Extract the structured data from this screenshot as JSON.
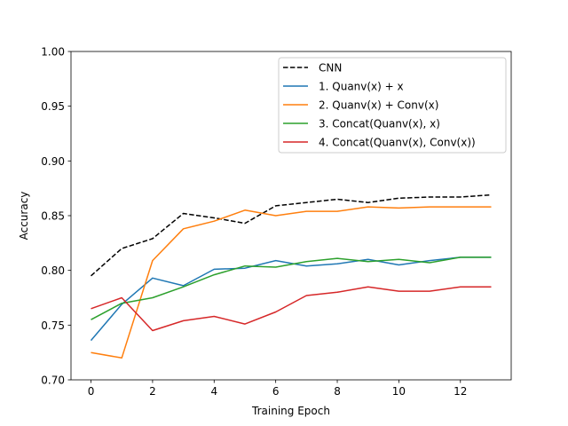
{
  "chart_data": {
    "type": "line",
    "title": "",
    "xlabel": "Training Epoch",
    "ylabel": "Accuracy",
    "xlim": [
      -0.65,
      13.65
    ],
    "ylim": [
      0.7,
      1.0
    ],
    "xticks": [
      0,
      2,
      4,
      6,
      8,
      10,
      12
    ],
    "yticks": [
      0.7,
      0.75,
      0.8,
      0.85,
      0.9,
      0.95,
      1.0
    ],
    "xtick_labels": [
      "0",
      "2",
      "4",
      "6",
      "8",
      "10",
      "12"
    ],
    "ytick_labels": [
      "0.70",
      "0.75",
      "0.80",
      "0.85",
      "0.90",
      "0.95",
      "1.00"
    ],
    "grid": false,
    "legend_position": "top-right",
    "x": [
      0,
      1,
      2,
      3,
      4,
      5,
      6,
      7,
      8,
      9,
      10,
      11,
      12,
      13
    ],
    "series": [
      {
        "name": "CNN",
        "color": "#000000",
        "dashed": true,
        "values": [
          0.795,
          0.82,
          0.829,
          0.852,
          0.848,
          0.843,
          0.859,
          0.862,
          0.865,
          0.862,
          0.866,
          0.867,
          0.867,
          0.869
        ]
      },
      {
        "name": "1. Quanv(x) + x",
        "color": "#1f77b4",
        "dashed": false,
        "values": [
          0.736,
          0.769,
          0.793,
          0.786,
          0.801,
          0.802,
          0.809,
          0.804,
          0.806,
          0.81,
          0.805,
          0.809,
          0.812,
          0.812
        ]
      },
      {
        "name": "2. Quanv(x) + Conv(x)",
        "color": "#ff7f0e",
        "dashed": false,
        "values": [
          0.725,
          0.72,
          0.809,
          0.838,
          0.845,
          0.855,
          0.85,
          0.854,
          0.854,
          0.858,
          0.857,
          0.858,
          0.858,
          0.858
        ]
      },
      {
        "name": "3. Concat(Quanv(x), x)",
        "color": "#2ca02c",
        "dashed": false,
        "values": [
          0.755,
          0.77,
          0.775,
          0.785,
          0.796,
          0.804,
          0.803,
          0.808,
          0.811,
          0.808,
          0.81,
          0.807,
          0.812,
          0.812
        ]
      },
      {
        "name": "4. Concat(Quanv(x), Conv(x))",
        "color": "#d62728",
        "dashed": false,
        "values": [
          0.765,
          0.775,
          0.745,
          0.754,
          0.758,
          0.751,
          0.762,
          0.777,
          0.78,
          0.785,
          0.781,
          0.781,
          0.785,
          0.785
        ]
      }
    ]
  }
}
